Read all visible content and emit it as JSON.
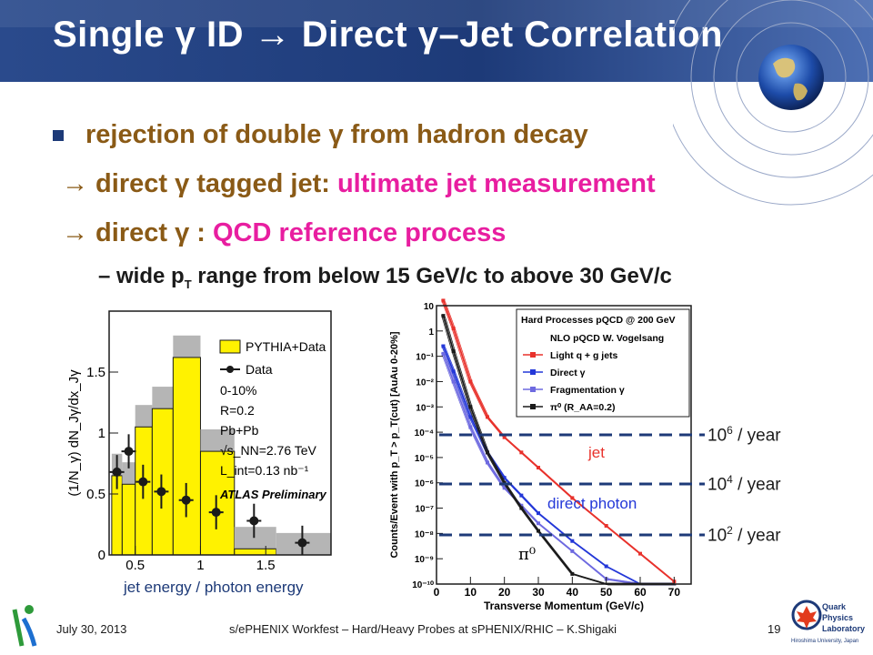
{
  "slide": {
    "title": "Single γ ID → Direct γ–Jet Correlation",
    "bullet1": "rejection of double γ from hadron decay",
    "line2_prefix": "→ direct γ tagged jet: ",
    "line2_highlight": "ultimate jet measurement",
    "line3_prefix": "→ direct γ : ",
    "line3_highlight": "QCD reference process",
    "line4": "– wide p",
    "line4_sub": "T",
    "line4_rest": " range from below 15 GeV/c to above 30 GeV/c",
    "left_caption": "jet energy / photon energy",
    "ann_1e6": "10",
    "ann_1e6_exp": "6",
    "ann_1e4": "10",
    "ann_1e4_exp": "4",
    "ann_1e2": "10",
    "ann_1e2_exp": "2",
    "ann_unit": " / year",
    "label_jet": "jet",
    "label_direct_photon": "direct photon",
    "label_pi0": "π⁰"
  },
  "footer": {
    "date": "July 30, 2013",
    "center": "s/ePHENIX Workfest – Hard/Heavy Probes at sPHENIX/RHIC – K.Shigaki",
    "page": "19",
    "logo_right": [
      "Quark",
      "Physics",
      "Laboratory",
      "Hiroshima University, Japan"
    ]
  },
  "colors": {
    "header": "#1d3a78",
    "bullet_text": "#8a5a16",
    "highlight": "#e81ea0",
    "annotation_line": "#1d3a78",
    "jet_curve": "#e8322c",
    "direct_curve": "#2438d8",
    "frag_curve": "#6e6ae0",
    "pi0_curve": "#1b1b1b"
  },
  "chart_data": [
    {
      "type": "bar",
      "title": "",
      "xlabel": "",
      "ylabel": "(1/N_γ) dN_Jγ/dx_Jγ",
      "x_tick_labels": [
        "0.5",
        "1",
        "1.5"
      ],
      "y_tick_labels": [
        "0",
        "0.5",
        "1",
        "1.5"
      ],
      "ylim": [
        0,
        2.0
      ],
      "xlim": [
        0.3,
        2.0
      ],
      "legend": [
        "PYTHIA+Data",
        "Data"
      ],
      "annotations": [
        "0-10%",
        "R=0.2",
        "Pb+Pb",
        "√s_NN=2.76 TeV",
        "L_int=0.13 nb⁻¹",
        "ATLAS Preliminary"
      ],
      "bin_edges": [
        0.32,
        0.4,
        0.5,
        0.63,
        0.79,
        1.0,
        1.26,
        1.58,
        2.0
      ],
      "series": [
        {
          "name": "PYTHIA+Data",
          "values": [
            0.65,
            0.58,
            1.05,
            1.2,
            1.62,
            0.85,
            0.05,
            0.0
          ]
        },
        {
          "name": "Data",
          "x": [
            0.36,
            0.45,
            0.56,
            0.7,
            0.89,
            1.12,
            1.41,
            1.78
          ],
          "values": [
            0.68,
            0.85,
            0.6,
            0.52,
            0.45,
            0.35,
            0.28,
            0.1
          ]
        }
      ]
    },
    {
      "type": "line",
      "title": "Hard Processes pQCD @ 200 GeV",
      "xlabel": "Transverse Momentum (GeV/c)",
      "ylabel": "Counts/Event with p_T > p_T(cut) [AuAu 0-20%]",
      "x_tick_labels": [
        "0",
        "10",
        "20",
        "30",
        "40",
        "50",
        "60",
        "70"
      ],
      "y_tick_labels": [
        "10⁻¹⁰",
        "10⁻⁹",
        "10⁻⁸",
        "10⁻⁷",
        "10⁻⁶",
        "10⁻⁵",
        "10⁻⁴",
        "10⁻³",
        "10⁻²",
        "10⁻¹",
        "1",
        "10"
      ],
      "xlim": [
        0,
        75
      ],
      "ylim_log10": [
        -10,
        1
      ],
      "legend": [
        "NLO pQCD W. Vogelsang",
        "Light q + g jets",
        "Direct γ",
        "Fragmentation γ",
        "π⁰ (R_AA=0.2)"
      ],
      "x": [
        2,
        5,
        10,
        15,
        20,
        25,
        30,
        40,
        50,
        60,
        70
      ],
      "series": [
        {
          "name": "Light q + g jets",
          "values_log10": [
            1.2,
            0.1,
            -2.0,
            -3.4,
            -4.2,
            -4.8,
            -5.4,
            -6.6,
            -7.7,
            -8.8,
            -9.9
          ]
        },
        {
          "name": "Direct γ",
          "values_log10": [
            -0.6,
            -1.6,
            -3.4,
            -4.8,
            -5.8,
            -6.5,
            -7.2,
            -8.3,
            -9.3,
            -10.3,
            -10.3
          ]
        },
        {
          "name": "Fragmentation γ",
          "values_log10": [
            -0.9,
            -2.0,
            -3.8,
            -5.2,
            -6.2,
            -6.9,
            -7.6,
            -8.7,
            -9.8,
            -10.3,
            -10.3
          ]
        },
        {
          "name": "π⁰ (R_AA=0.2)",
          "values_log10": [
            0.6,
            -0.8,
            -3.0,
            -4.8,
            -6.0,
            -7.0,
            -7.9,
            -9.6,
            -10.3,
            -10.3,
            -10.3
          ]
        }
      ]
    }
  ]
}
